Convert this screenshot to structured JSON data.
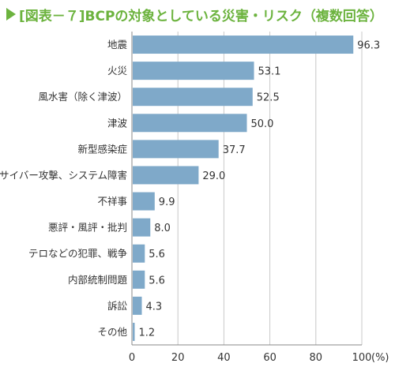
{
  "chart_data": {
    "type": "bar",
    "orientation": "horizontal",
    "title": "[図表－７]BCPの対象としている災害・リスク（複数回答）",
    "categories": [
      "地震",
      "火災",
      "風水害（除く津波）",
      "津波",
      "新型感染症",
      "サイバー攻撃、システム障害",
      "不祥事",
      "悪評・風評・批判",
      "テロなどの犯罪、戦争",
      "内部統制問題",
      "訴訟",
      "その他"
    ],
    "values": [
      96.3,
      53.1,
      52.5,
      50.0,
      37.7,
      29.0,
      9.9,
      8.0,
      5.6,
      5.6,
      4.3,
      1.2
    ],
    "value_labels": [
      "96.3",
      "53.1",
      "52.5",
      "50.0",
      "37.7",
      "29.0",
      "9.9",
      "8.0",
      "5.6",
      "5.6",
      "4.3",
      "1.2"
    ],
    "xlim": [
      0,
      100
    ],
    "xticks": [
      "0",
      "20",
      "40",
      "60",
      "80",
      "100"
    ],
    "unit_label": "(%)",
    "grid": true,
    "bar_color": "#7fa9c9",
    "title_color": "#6cb33e"
  }
}
